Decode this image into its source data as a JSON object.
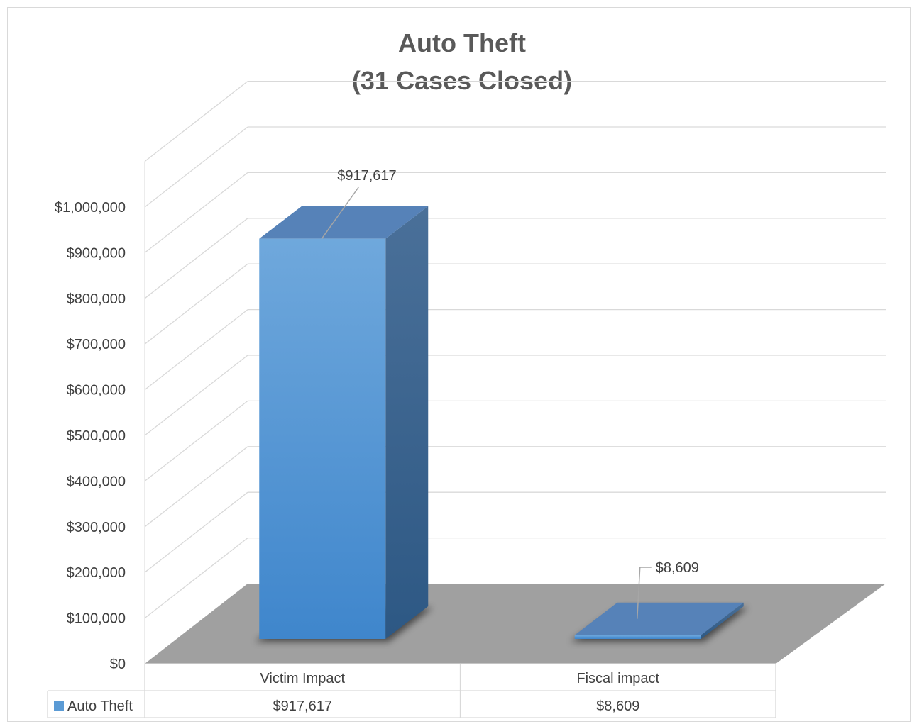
{
  "chart_data": {
    "type": "bar",
    "title": [
      "Auto Theft",
      "(31 Cases Closed)"
    ],
    "categories": [
      "Victim Impact",
      "Fiscal impact"
    ],
    "series": [
      {
        "name": "Auto Theft",
        "values": [
          917617,
          8609
        ],
        "value_labels": [
          "$917,617",
          "$8,609"
        ]
      }
    ],
    "ylim": [
      0,
      1000000
    ],
    "y_ticks": [
      0,
      100000,
      200000,
      300000,
      400000,
      500000,
      600000,
      700000,
      800000,
      900000,
      1000000
    ],
    "y_tick_labels": [
      "$0",
      "$100,000",
      "$200,000",
      "$300,000",
      "$400,000",
      "$500,000",
      "$600,000",
      "$700,000",
      "$800,000",
      "$900,000",
      "$1,000,000"
    ],
    "grid": true,
    "three_d": true,
    "data_table": true,
    "colors": {
      "bar_front": "#5b9bd5",
      "bar_top": "#5682b8",
      "bar_side": "#3b6591",
      "floor": "#a0a0a0",
      "grid": "#d9d9d9",
      "text": "#404040",
      "title": "#595959"
    }
  }
}
